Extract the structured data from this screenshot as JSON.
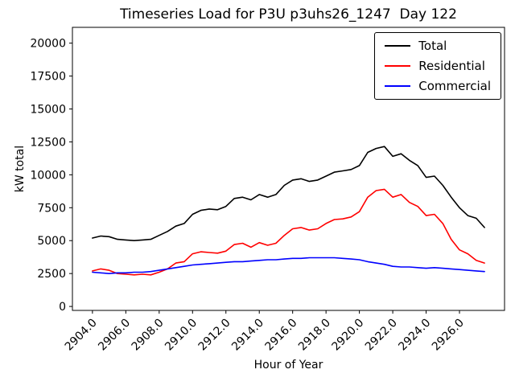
{
  "chart_data": {
    "type": "line",
    "title": "Timeseries Load for P3U p3uhs26_1247  Day 122",
    "xlabel": "Hour of Year",
    "ylabel": "kW total",
    "xlim": [
      2902.8,
      2928.7
    ],
    "ylim": [
      -300,
      21200
    ],
    "grid": false,
    "legend_position": "upper right",
    "xticks": {
      "values": [
        2904,
        2906,
        2908,
        2910,
        2912,
        2914,
        2916,
        2918,
        2920,
        2922,
        2924,
        2926
      ],
      "labels": [
        "2904.0",
        "2906.0",
        "2908.0",
        "2910.0",
        "2912.0",
        "2914.0",
        "2916.0",
        "2918.0",
        "2920.0",
        "2922.0",
        "2924.0",
        "2926.0"
      ]
    },
    "yticks": {
      "values": [
        0,
        2500,
        5000,
        7500,
        10000,
        12500,
        15000,
        17500,
        20000
      ],
      "labels": [
        "0",
        "2500",
        "5000",
        "7500",
        "10000",
        "12500",
        "15000",
        "17500",
        "20000"
      ]
    },
    "x": [
      2904.0,
      2904.5,
      2905.0,
      2905.5,
      2906.0,
      2906.5,
      2907.0,
      2907.5,
      2908.0,
      2908.5,
      2909.0,
      2909.5,
      2910.0,
      2910.5,
      2911.0,
      2911.5,
      2912.0,
      2912.5,
      2913.0,
      2913.5,
      2914.0,
      2914.5,
      2915.0,
      2915.5,
      2916.0,
      2916.5,
      2917.0,
      2917.5,
      2918.0,
      2918.5,
      2919.0,
      2919.5,
      2920.0,
      2920.5,
      2921.0,
      2921.5,
      2922.0,
      2922.5,
      2923.0,
      2923.5,
      2924.0,
      2924.5,
      2925.0,
      2925.5,
      2926.0,
      2926.5,
      2927.0,
      2927.5
    ],
    "series": [
      {
        "name": "Total",
        "color": "#000000",
        "values": [
          5200,
          5350,
          5300,
          5100,
          5050,
          5000,
          5050,
          5100,
          5400,
          5700,
          6100,
          6300,
          7000,
          7300,
          7400,
          7350,
          7600,
          8200,
          8300,
          8100,
          8500,
          8300,
          8500,
          9200,
          9600,
          9700,
          9500,
          9600,
          9900,
          10200,
          10300,
          10400,
          10700,
          11700,
          12000,
          12150,
          11400,
          11600,
          11100,
          10700,
          9800,
          9900,
          9200,
          8300,
          7500,
          6900,
          6700,
          6000
        ]
      },
      {
        "name": "Residential",
        "color": "#ff0000",
        "values": [
          2700,
          2850,
          2750,
          2500,
          2450,
          2400,
          2450,
          2400,
          2600,
          2850,
          3300,
          3400,
          4000,
          4150,
          4100,
          4050,
          4200,
          4700,
          4800,
          4500,
          4850,
          4650,
          4800,
          5400,
          5900,
          6000,
          5800,
          5900,
          6300,
          6600,
          6650,
          6800,
          7200,
          8300,
          8800,
          8900,
          8300,
          8500,
          7900,
          7600,
          6900,
          7000,
          6300,
          5100,
          4300,
          4000,
          3500,
          3300
        ]
      },
      {
        "name": "Commercial",
        "color": "#0000ff",
        "values": [
          2600,
          2550,
          2500,
          2550,
          2550,
          2600,
          2600,
          2650,
          2750,
          2850,
          2950,
          3050,
          3150,
          3200,
          3250,
          3300,
          3350,
          3400,
          3400,
          3450,
          3500,
          3550,
          3550,
          3600,
          3650,
          3650,
          3700,
          3700,
          3700,
          3700,
          3650,
          3600,
          3550,
          3400,
          3300,
          3200,
          3050,
          3000,
          3000,
          2950,
          2900,
          2950,
          2900,
          2850,
          2800,
          2750,
          2700,
          2650
        ]
      }
    ]
  }
}
